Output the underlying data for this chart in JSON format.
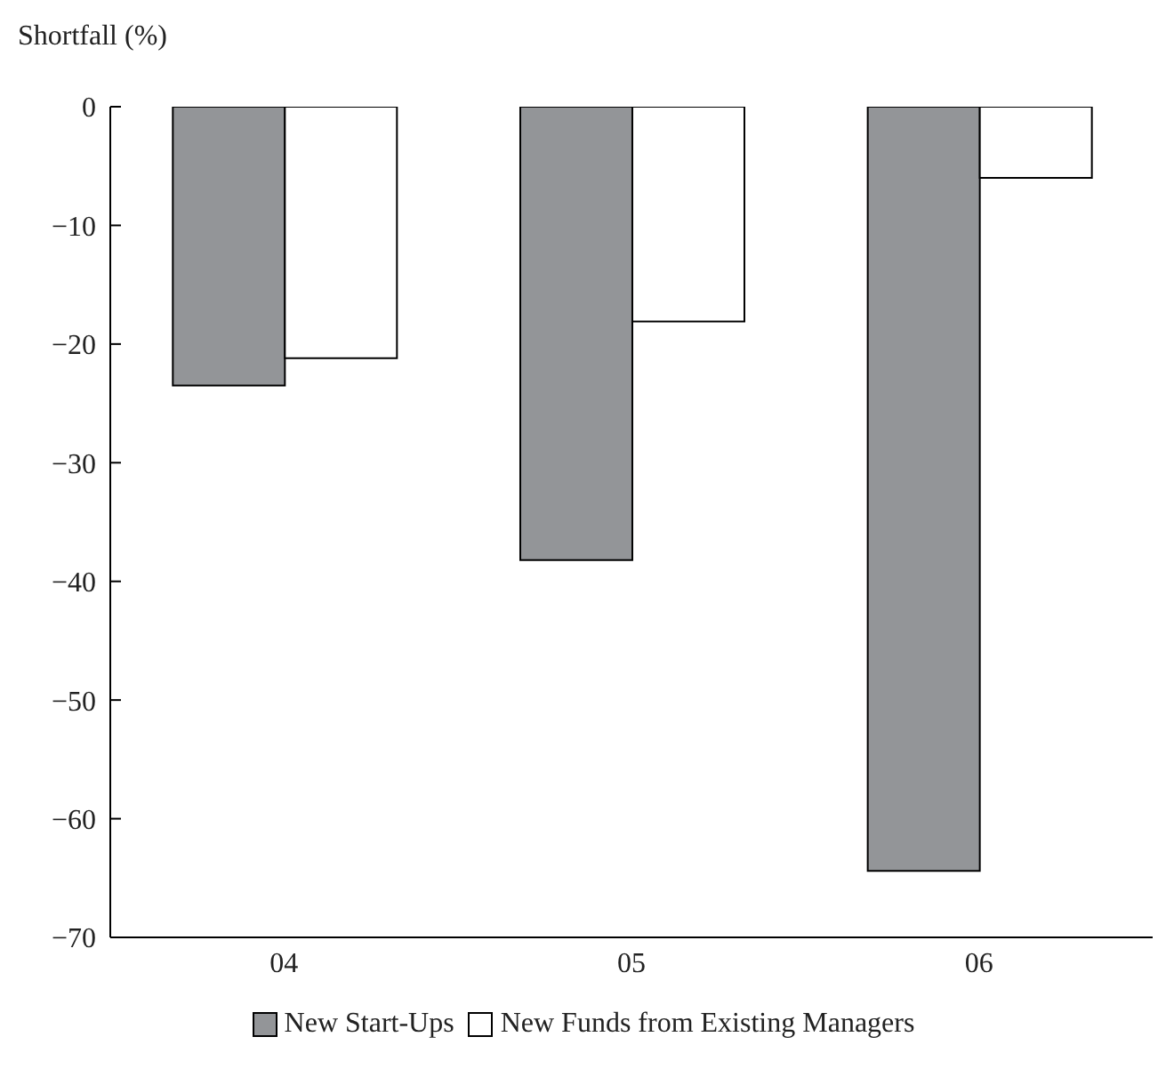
{
  "chart_data": {
    "type": "bar",
    "ylabel": "Shortfall (%)",
    "categories": [
      "04",
      "05",
      "06"
    ],
    "series": [
      {
        "name": "New Start-Ups",
        "color": "#939598",
        "values": [
          -23.5,
          -38.2,
          -64.4
        ]
      },
      {
        "name": "New Funds from Existing Managers",
        "color": "#ffffff",
        "values": [
          -21.2,
          -18.1,
          -6.0
        ]
      }
    ],
    "ylim": [
      -70,
      0
    ],
    "yticks": [
      -70,
      -60,
      -50,
      -40,
      -30,
      -20,
      -10,
      0
    ],
    "grid": false,
    "legend": "bottom"
  }
}
